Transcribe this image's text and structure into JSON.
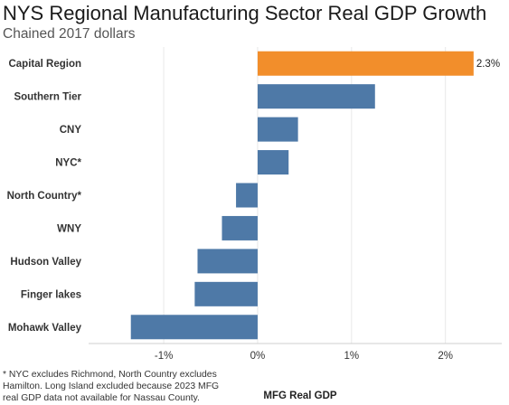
{
  "title": "NYS Regional Manufacturing Sector Real GDP Growth",
  "subtitle": "Chained 2017 dollars",
  "footnote": "* NYC excludes Richmond, North Country excludes Hamilton. Long Island excluded because 2023 MFG real GDP data not available for Nassau County.",
  "colors": {
    "default_bar": "#4e79a7",
    "highlight_bar": "#f28e2b",
    "gridline": "#e8e8e8"
  },
  "chart_data": {
    "type": "bar",
    "orientation": "horizontal",
    "title": "NYS Regional Manufacturing Sector Real GDP Growth",
    "subtitle": "Chained 2017 dollars",
    "xlabel": "MFG Real GDP",
    "ylabel": "",
    "xlim": [
      -1.8,
      2.6
    ],
    "xticks": [
      -1,
      0,
      1,
      2
    ],
    "xtick_labels": [
      "-1%",
      "0%",
      "1%",
      "2%"
    ],
    "grid": "vertical",
    "categories": [
      "Capital Region",
      "Southern Tier",
      "CNY",
      "NYC*",
      "North Country*",
      "WNY",
      "Hudson Valley",
      "Finger lakes",
      "Mohawk Valley"
    ],
    "values": [
      2.3,
      1.25,
      0.43,
      0.33,
      -0.23,
      -0.38,
      -0.64,
      -0.67,
      -1.35
    ],
    "highlight": [
      "Capital Region"
    ],
    "data_labels": {
      "Capital Region": "2.3%"
    }
  }
}
